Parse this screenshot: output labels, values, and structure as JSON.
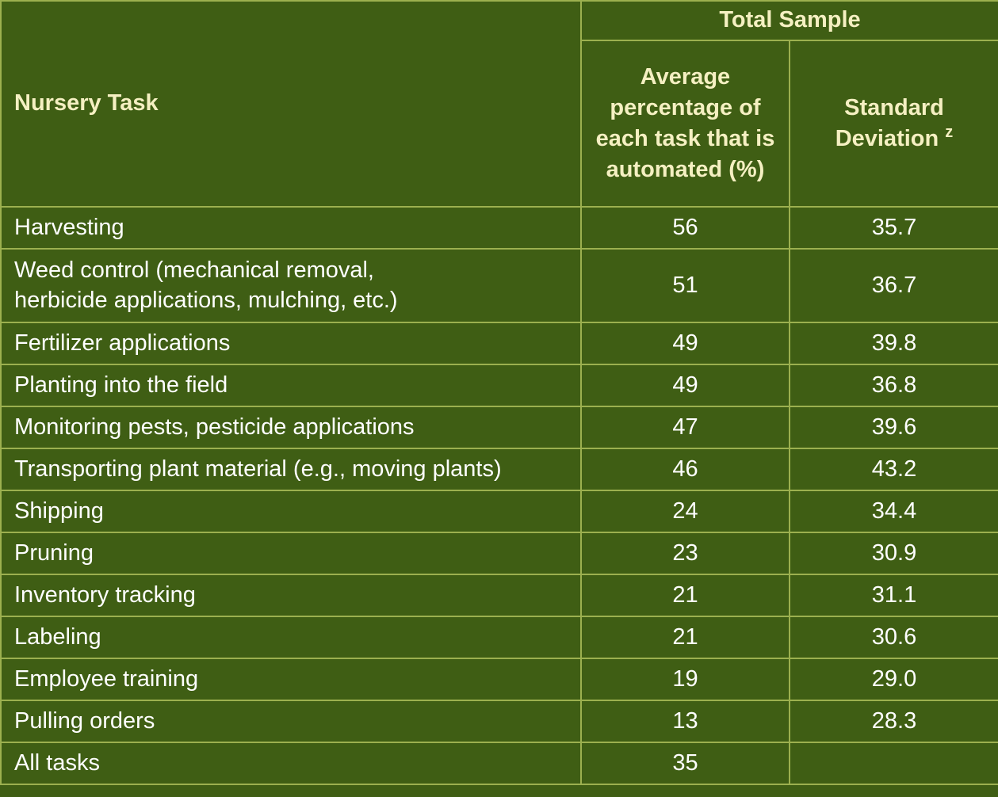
{
  "table": {
    "col_task": "Nursery Task",
    "group_header": "Total Sample",
    "col_avg": "Average percentage of each task that is automated (%)",
    "col_sd": "Standard Deviation",
    "col_sd_sup": "z",
    "rows": [
      {
        "task": "Harvesting",
        "avg": "56",
        "sd": "35.7"
      },
      {
        "task": "Weed control (mechanical removal, herbicide applications, mulching, etc.)",
        "avg": "51",
        "sd": "36.7"
      },
      {
        "task": "Fertilizer applications",
        "avg": "49",
        "sd": "39.8"
      },
      {
        "task": "Planting into the field",
        "avg": "49",
        "sd": "36.8"
      },
      {
        "task": "Monitoring pests, pesticide applications",
        "avg": "47",
        "sd": "39.6"
      },
      {
        "task": "Transporting plant material (e.g., moving plants)",
        "avg": "46",
        "sd": "43.2"
      },
      {
        "task": "Shipping",
        "avg": "24",
        "sd": "34.4"
      },
      {
        "task": "Pruning",
        "avg": "23",
        "sd": "30.9"
      },
      {
        "task": "Inventory tracking",
        "avg": "21",
        "sd": "31.1"
      },
      {
        "task": "Labeling",
        "avg": "21",
        "sd": "30.6"
      },
      {
        "task": "Employee training",
        "avg": "19",
        "sd": "29.0"
      },
      {
        "task": "Pulling orders",
        "avg": "13",
        "sd": "28.3"
      },
      {
        "task": "All tasks",
        "avg": "35",
        "sd": ""
      }
    ]
  }
}
